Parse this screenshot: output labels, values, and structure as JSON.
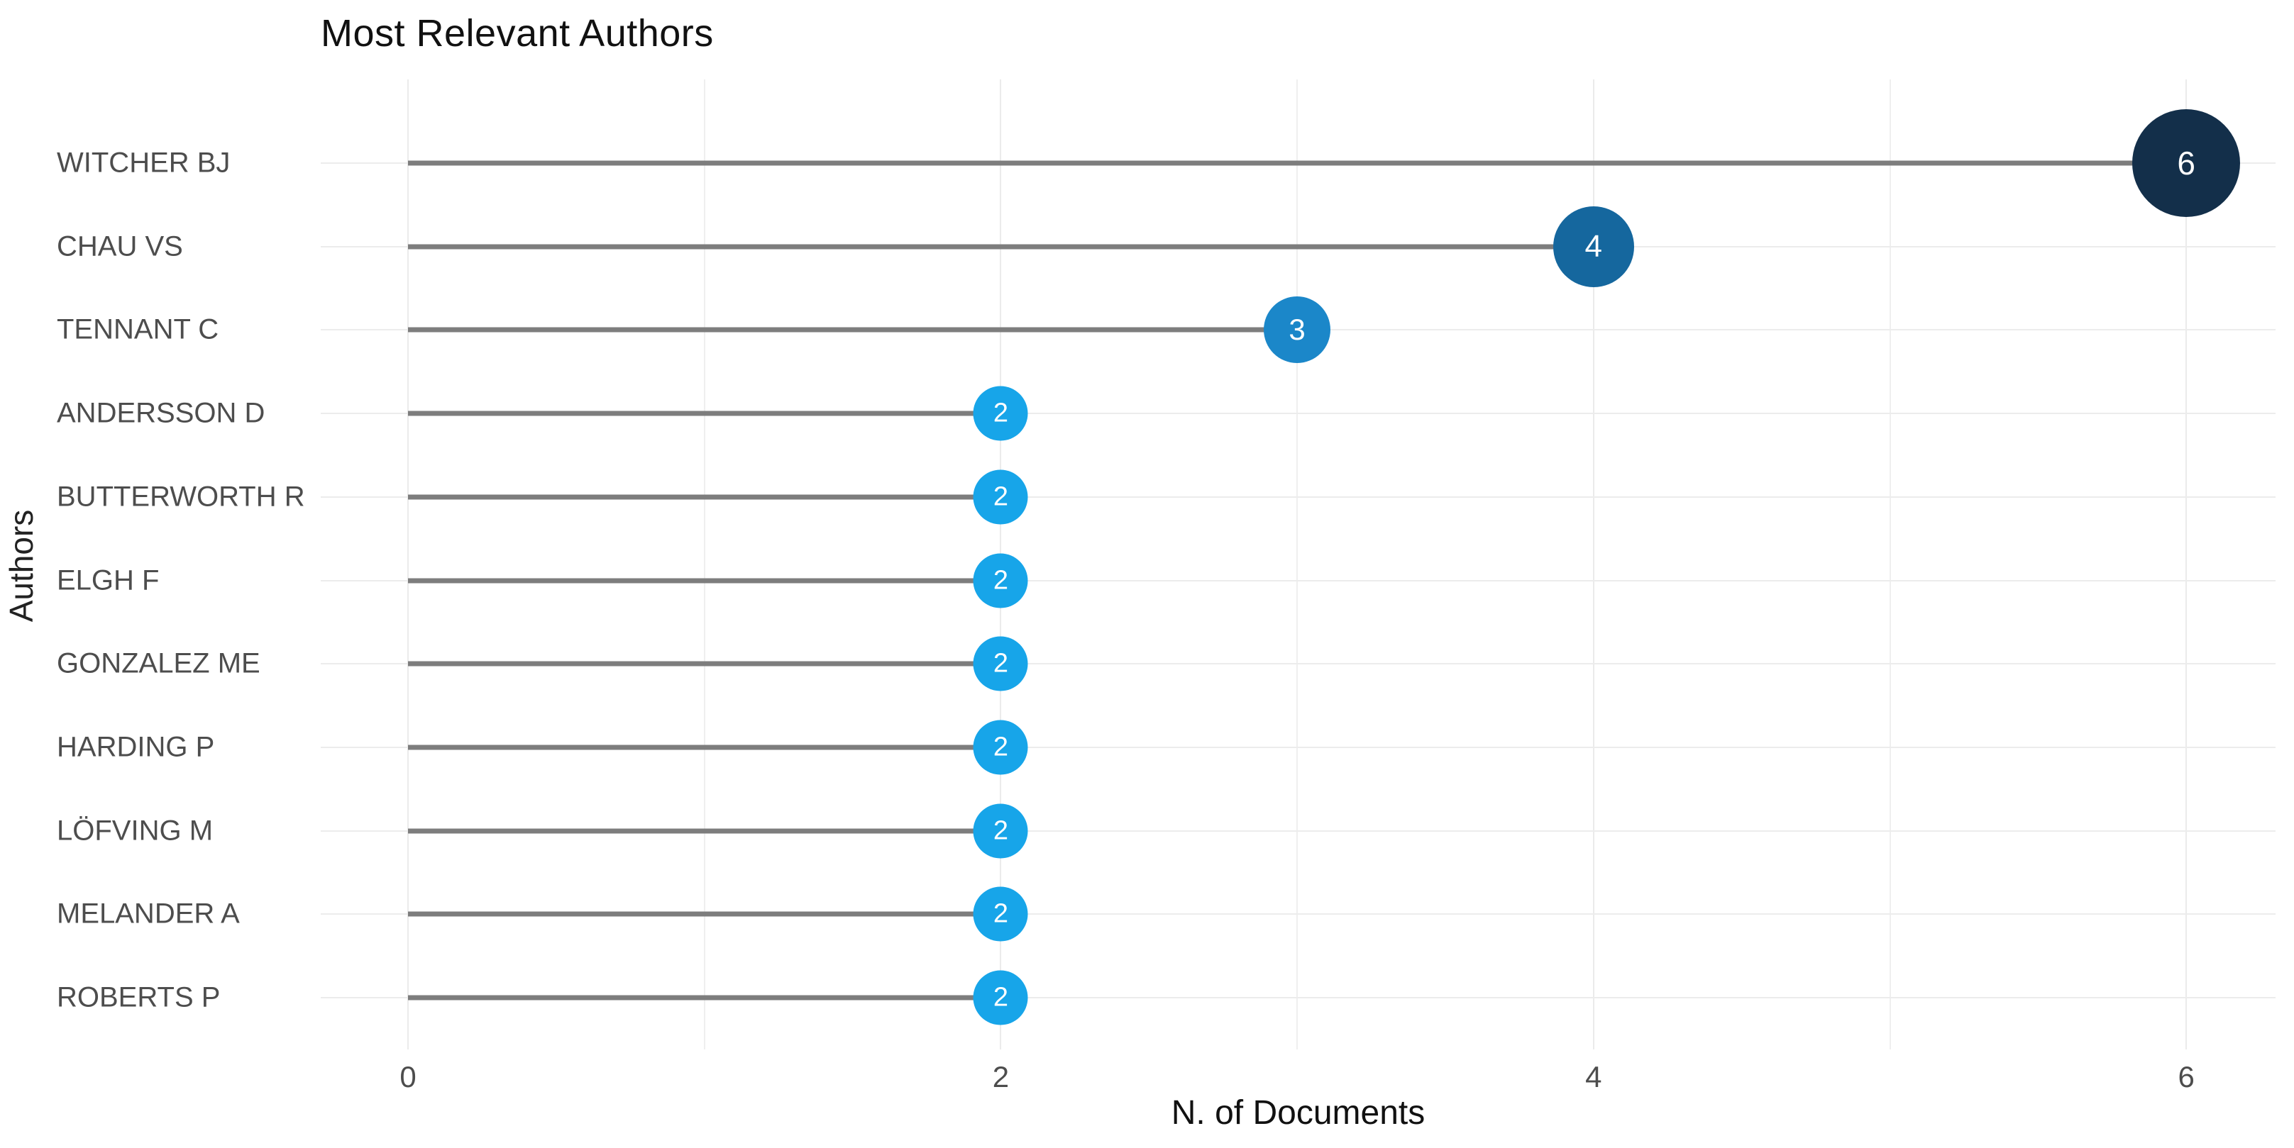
{
  "chart": {
    "title": "Most Relevant Authors",
    "xlabel": "N. of Documents",
    "ylabel": "Authors"
  },
  "chart_data": {
    "type": "lollipop",
    "orientation": "horizontal",
    "title": "Most Relevant Authors",
    "xlabel": "N. of Documents",
    "ylabel": "Authors",
    "categories": [
      "WITCHER BJ",
      "CHAU VS",
      "TENNANT C",
      "ANDERSSON D",
      "BUTTERWORTH R",
      "ELGH F",
      "GONZALEZ ME",
      "HARDING P",
      "LÖFVING M",
      "MELANDER A",
      "ROBERTS P"
    ],
    "values": [
      6,
      4,
      3,
      2,
      2,
      2,
      2,
      2,
      2,
      2,
      2
    ],
    "x_ticks": [
      0,
      2,
      4,
      6
    ],
    "x_minor_gridlines": [
      1,
      3,
      5
    ],
    "xlim": [
      -0.3,
      6.3
    ],
    "grid": true,
    "legend": false,
    "background": "#ffffff",
    "stem_color": "#7d7d7d",
    "grid_color": "#ebebeb",
    "label_color": "#4d4d4d",
    "point_colors_by_value": {
      "2": "#17a5e9",
      "3": "#1b87c9",
      "4": "#15679e",
      "6": "#132f4a"
    },
    "point_diameters_by_value": {
      "2": 77,
      "3": 94,
      "4": 114,
      "6": 152
    }
  }
}
